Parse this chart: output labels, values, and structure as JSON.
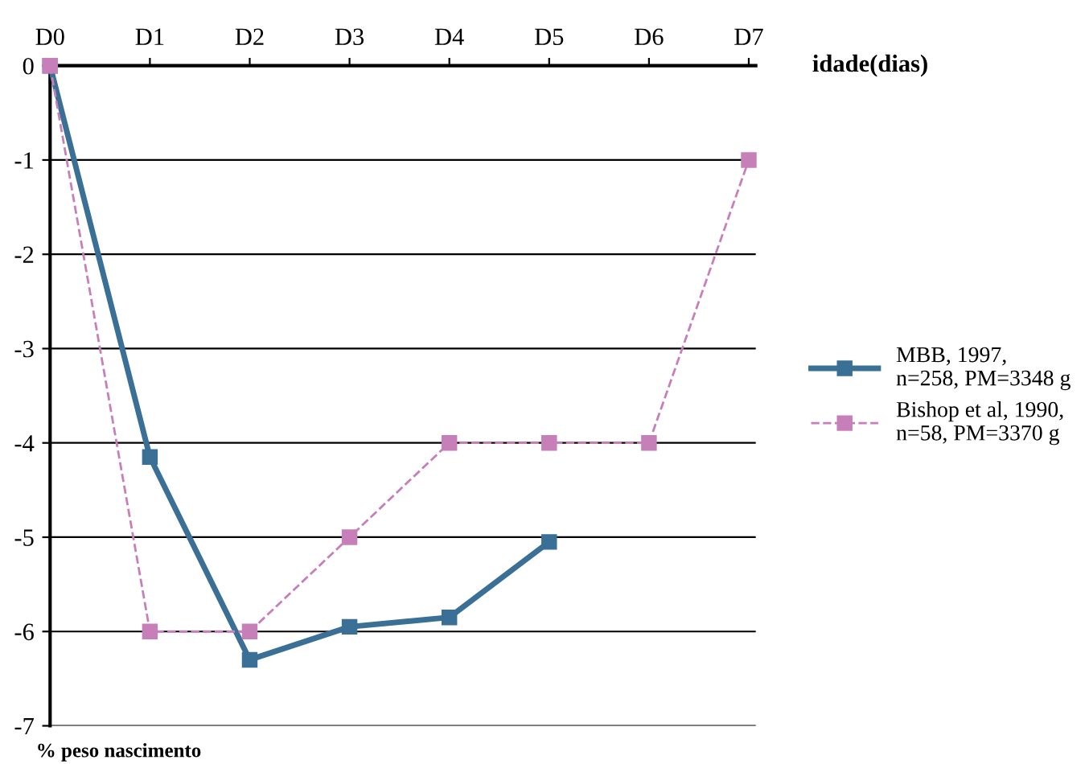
{
  "chart_data": {
    "type": "line",
    "xlabel": "idade(dias)",
    "annotations": [
      "% peso nascimento"
    ],
    "categories": [
      "D0",
      "D1",
      "D2",
      "D3",
      "D4",
      "D5",
      "D6",
      "D7"
    ],
    "series": [
      {
        "name": "MBB, 1997,\nn=258, PM=3348 g",
        "color": "#3a6f96",
        "line_style": "solid",
        "values": [
          0,
          -4.15,
          -6.3,
          -5.95,
          -5.85,
          -5.05,
          null,
          null
        ]
      },
      {
        "name": "Bishop et al, 1990,\nn=58, PM=3370 g",
        "color": "#c77fba",
        "line_style": "dashed",
        "values": [
          0,
          -6,
          -6,
          -5,
          -4,
          -4,
          -4,
          -1
        ]
      }
    ],
    "ylim": [
      -7,
      0
    ],
    "yticks": [
      -7,
      -6,
      -5,
      -4,
      -3,
      -2,
      -1,
      0
    ],
    "grid": "y",
    "legend": "right",
    "marker": "square"
  }
}
